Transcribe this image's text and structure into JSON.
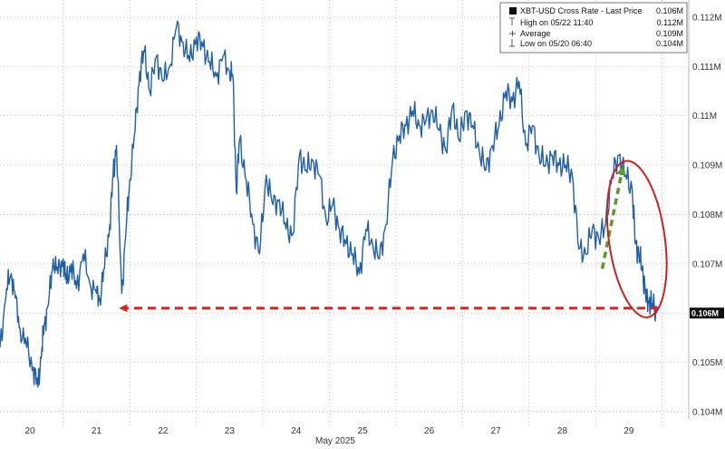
{
  "colors": {
    "line": "#1f5fa8",
    "grid": "#9a9a9a",
    "arrow_red": "#d7261e",
    "arrow_green": "#5a9a2a",
    "ellipse": "#cc1f1f",
    "last_label_bg": "#111111"
  },
  "legend": {
    "title": "XBT-USD Cross Rate - Last Price",
    "title_value": "0.106M",
    "rows": [
      {
        "icon": "high-marker-icon",
        "label": "High on 05/22 11:40",
        "value": "0.112M"
      },
      {
        "icon": "average-marker-icon",
        "label": "Average",
        "value": "0.109M"
      },
      {
        "icon": "low-marker-icon",
        "label": "Low on 05/20 06:40",
        "value": "0.104M"
      }
    ]
  },
  "month_label": "May 2025",
  "last_price_label": "0.106M",
  "chart_data": {
    "type": "line",
    "title": "",
    "xlabel": "May 2025",
    "ylabel": "",
    "ylim": [
      0.10385,
      0.11235
    ],
    "xlim": [
      19.55,
      29.9
    ],
    "grid": true,
    "legend_position": "top-right",
    "x_ticks": [
      {
        "value": 20,
        "label": "20"
      },
      {
        "value": 21,
        "label": "21"
      },
      {
        "value": 22,
        "label": "22"
      },
      {
        "value": 23,
        "label": "23"
      },
      {
        "value": 24,
        "label": "24"
      },
      {
        "value": 25,
        "label": "25"
      },
      {
        "value": 26,
        "label": "26"
      },
      {
        "value": 27,
        "label": "27"
      },
      {
        "value": 28,
        "label": "28"
      },
      {
        "value": 29,
        "label": "29"
      }
    ],
    "y_ticks": [
      {
        "value": 0.104,
        "label": "0.104M"
      },
      {
        "value": 0.105,
        "label": "0.105M"
      },
      {
        "value": 0.106,
        "label": "0.106M"
      },
      {
        "value": 0.107,
        "label": "0.107M"
      },
      {
        "value": 0.108,
        "label": "0.108M"
      },
      {
        "value": 0.109,
        "label": "0.109M"
      },
      {
        "value": 0.11,
        "label": "0.11M"
      },
      {
        "value": 0.111,
        "label": "0.111M"
      },
      {
        "value": 0.112,
        "label": "0.112M"
      }
    ],
    "series": [
      {
        "name": "XBT-USD Cross Rate - Last Price",
        "x": [
          19.55,
          19.65,
          19.72,
          19.78,
          19.85,
          19.95,
          20.05,
          20.12,
          20.18,
          20.22,
          20.28,
          20.35,
          20.42,
          20.5,
          20.55,
          20.62,
          20.7,
          20.8,
          20.9,
          21.0,
          21.05,
          21.12,
          21.2,
          21.25,
          21.3,
          21.38,
          21.45,
          21.5,
          21.58,
          21.65,
          21.72,
          21.8,
          21.9,
          22.0,
          22.1,
          22.2,
          22.3,
          22.4,
          22.5,
          22.6,
          22.7,
          22.8,
          22.9,
          23.0,
          23.05,
          23.1,
          23.15,
          23.25,
          23.35,
          23.45,
          23.55,
          23.65,
          23.75,
          23.85,
          23.95,
          24.05,
          24.15,
          24.25,
          24.35,
          24.45,
          24.55,
          24.65,
          24.75,
          24.85,
          24.95,
          25.05,
          25.15,
          25.25,
          25.35,
          25.45,
          25.55,
          25.65,
          25.75,
          25.85,
          25.95,
          26.05,
          26.15,
          26.25,
          26.35,
          26.45,
          26.55,
          26.65,
          26.75,
          26.85,
          26.95,
          27.05,
          27.15,
          27.25,
          27.35,
          27.45,
          27.55,
          27.65,
          27.75,
          27.85,
          27.95,
          28.05,
          28.15,
          28.25,
          28.35,
          28.45,
          28.55,
          28.65,
          28.75,
          28.85,
          28.95,
          29.05,
          29.1,
          29.15,
          29.2,
          29.25,
          29.3,
          29.35,
          29.42
        ],
        "y": [
          0.1053,
          0.1065,
          0.1068,
          0.1063,
          0.1057,
          0.1053,
          0.1049,
          0.1045,
          0.1053,
          0.1058,
          0.1062,
          0.1071,
          0.1068,
          0.1071,
          0.1066,
          0.107,
          0.1065,
          0.1072,
          0.1066,
          0.1064,
          0.1063,
          0.1069,
          0.1078,
          0.1088,
          0.1094,
          0.1064,
          0.1078,
          0.1087,
          0.1097,
          0.1109,
          0.1113,
          0.1105,
          0.1112,
          0.1107,
          0.111,
          0.1118,
          0.1115,
          0.1111,
          0.1116,
          0.1114,
          0.1111,
          0.1108,
          0.1112,
          0.1109,
          0.1108,
          0.1085,
          0.1095,
          0.1087,
          0.1078,
          0.1072,
          0.1088,
          0.1082,
          0.1083,
          0.1077,
          0.1076,
          0.1092,
          0.1089,
          0.1091,
          0.1088,
          0.1079,
          0.1082,
          0.1077,
          0.1074,
          0.1072,
          0.1068,
          0.1077,
          0.1074,
          0.1071,
          0.1078,
          0.1091,
          0.1096,
          0.1098,
          0.1101,
          0.1098,
          0.1099,
          0.1101,
          0.1097,
          0.1093,
          0.1102,
          0.1095,
          0.1101,
          0.1098,
          0.1093,
          0.1089,
          0.1094,
          0.1098,
          0.1105,
          0.1103,
          0.1107,
          0.1094,
          0.1098,
          0.1092,
          0.109,
          0.1092,
          0.109,
          0.109,
          0.1088,
          0.1073,
          0.1072,
          0.1077,
          0.1075,
          0.1078,
          0.1088,
          0.1092,
          0.1088,
          0.1085,
          0.1074,
          0.1072,
          0.1069,
          0.1064,
          0.1062,
          0.1062,
          0.106
        ]
      }
    ],
    "annotations": [
      {
        "type": "dashed-arrow",
        "color": "red",
        "from": [
          29.45,
          0.1061
        ],
        "to": [
          21.4,
          0.1061
        ]
      },
      {
        "type": "dashed-arrow",
        "color": "green",
        "from": [
          28.6,
          0.1069
        ],
        "to": [
          28.9,
          0.1089
        ]
      },
      {
        "type": "ellipse",
        "color": "red",
        "center": [
          29.12,
          0.1075
        ],
        "rx": 0.42,
        "ry": 0.0016
      }
    ]
  }
}
